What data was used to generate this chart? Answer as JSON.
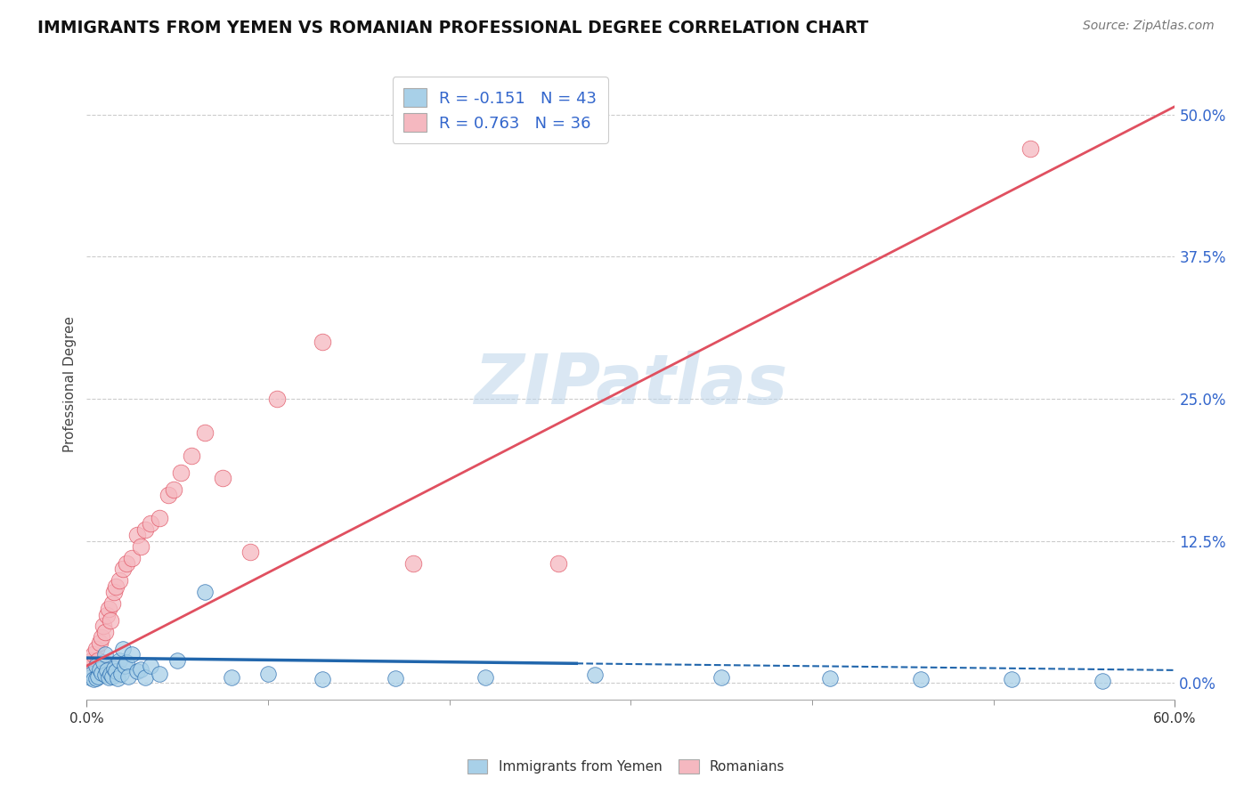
{
  "title": "IMMIGRANTS FROM YEMEN VS ROMANIAN PROFESSIONAL DEGREE CORRELATION CHART",
  "source": "Source: ZipAtlas.com",
  "ylabel": "Professional Degree",
  "ytick_values": [
    0.0,
    12.5,
    25.0,
    37.5,
    50.0
  ],
  "xlim": [
    0.0,
    60.0
  ],
  "ylim": [
    -1.5,
    54.0
  ],
  "legend1_r": "-0.151",
  "legend1_n": "43",
  "legend2_r": "0.763",
  "legend2_n": "36",
  "color_yemen": "#A8D0E8",
  "color_romanian": "#F5B8C0",
  "line_color_yemen": "#2166AC",
  "line_color_romanian": "#E05060",
  "watermark": "ZIPatlas",
  "yemen_x": [
    0.2,
    0.3,
    0.4,
    0.5,
    0.5,
    0.6,
    0.7,
    0.8,
    0.9,
    1.0,
    1.0,
    1.1,
    1.2,
    1.3,
    1.4,
    1.5,
    1.6,
    1.7,
    1.8,
    1.9,
    2.0,
    2.1,
    2.2,
    2.3,
    2.5,
    2.8,
    3.0,
    3.2,
    3.5,
    4.0,
    5.0,
    6.5,
    8.0,
    10.0,
    13.0,
    17.0,
    22.0,
    28.0,
    35.0,
    41.0,
    46.0,
    51.0,
    56.0
  ],
  "yemen_y": [
    0.5,
    0.8,
    0.3,
    1.5,
    0.4,
    0.6,
    1.2,
    0.9,
    1.8,
    2.5,
    0.7,
    1.1,
    0.5,
    0.8,
    0.6,
    1.3,
    1.0,
    0.4,
    2.0,
    0.8,
    3.0,
    1.5,
    1.8,
    0.6,
    2.5,
    1.0,
    1.2,
    0.5,
    1.5,
    0.8,
    2.0,
    8.0,
    0.5,
    0.8,
    0.3,
    0.4,
    0.5,
    0.7,
    0.5,
    0.4,
    0.3,
    0.3,
    0.2
  ],
  "romanian_x": [
    0.2,
    0.3,
    0.4,
    0.5,
    0.6,
    0.7,
    0.8,
    0.9,
    1.0,
    1.1,
    1.2,
    1.3,
    1.4,
    1.5,
    1.6,
    1.8,
    2.0,
    2.2,
    2.5,
    2.8,
    3.0,
    3.2,
    3.5,
    4.0,
    4.5,
    4.8,
    5.2,
    5.8,
    6.5,
    7.5,
    9.0,
    10.5,
    13.0,
    18.0,
    26.0,
    52.0
  ],
  "romanian_y": [
    1.5,
    2.0,
    2.5,
    3.0,
    2.0,
    3.5,
    4.0,
    5.0,
    4.5,
    6.0,
    6.5,
    5.5,
    7.0,
    8.0,
    8.5,
    9.0,
    10.0,
    10.5,
    11.0,
    13.0,
    12.0,
    13.5,
    14.0,
    14.5,
    16.5,
    17.0,
    18.5,
    20.0,
    22.0,
    18.0,
    11.5,
    25.0,
    30.0,
    10.5,
    10.5,
    47.0
  ],
  "yemen_solid_end": 27.0,
  "romanian_slope": 0.82,
  "romanian_intercept": 1.5,
  "yemen_slope": -0.018,
  "yemen_intercept": 2.2
}
